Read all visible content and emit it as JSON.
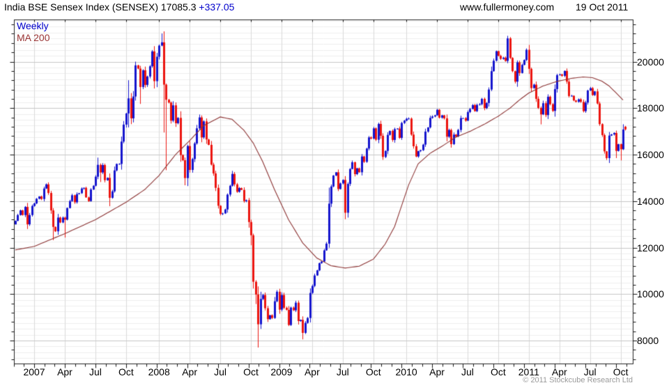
{
  "header": {
    "title": "India BSE Sensex Index (SENSEX)",
    "value": "17085.3",
    "change": "+337.05",
    "site": "www.fullermoney.com",
    "date": "19 Oct 2011"
  },
  "legend": {
    "series": "Weekly",
    "ma": "MA 200"
  },
  "footer": {
    "copyright": "© 2011 Stockcube Research Ltd"
  },
  "colors": {
    "up": "#1414cd",
    "down": "#eb140f",
    "ma": "#8b3232",
    "grid_minor": "#eeeeee",
    "grid_major": "#c6c6c6",
    "grid_vert": "#dadada",
    "border": "#222222",
    "tick": "#111111",
    "change_text": "#0000cc",
    "legend_series": "#0000cc",
    "legend_ma": "#993333",
    "copyright_text": "#9a9a9a"
  },
  "chart_data": {
    "type": "candlestick",
    "interval": "Weekly",
    "overlay": "MA 200",
    "title": "India BSE Sensex Index (SENSEX)",
    "last_value": 17085.3,
    "last_change": 337.05,
    "ylim": [
      7000,
      21800
    ],
    "y_ticks": [
      8000,
      10000,
      12000,
      14000,
      16000,
      18000,
      20000
    ],
    "y_minor_step": 250,
    "x_ticks": [
      {
        "i": 8,
        "label": "2007"
      },
      {
        "i": 21,
        "label": "Apr"
      },
      {
        "i": 34,
        "label": "Jul"
      },
      {
        "i": 47,
        "label": "Oct"
      },
      {
        "i": 61,
        "label": "2008"
      },
      {
        "i": 74,
        "label": "Apr"
      },
      {
        "i": 87,
        "label": "Jul"
      },
      {
        "i": 100,
        "label": "Oct"
      },
      {
        "i": 113,
        "label": "2009"
      },
      {
        "i": 126,
        "label": "Apr"
      },
      {
        "i": 139,
        "label": "Jul"
      },
      {
        "i": 152,
        "label": "Oct"
      },
      {
        "i": 166,
        "label": "2010"
      },
      {
        "i": 179,
        "label": "Apr"
      },
      {
        "i": 192,
        "label": "Jul"
      },
      {
        "i": 205,
        "label": "Oct"
      },
      {
        "i": 218,
        "label": "2011"
      },
      {
        "i": 231,
        "label": "Apr"
      },
      {
        "i": 244,
        "label": "Jul"
      },
      {
        "i": 257,
        "label": "Oct"
      }
    ],
    "closes": [
      13150,
      13400,
      13600,
      13400,
      13750,
      13000,
      13400,
      13790,
      13900,
      14100,
      14200,
      14090,
      14540,
      14720,
      14350,
      13600,
      12890,
      12700,
      13290,
      13080,
      13290,
      13200,
      13700,
      14000,
      14250,
      13950,
      14300,
      14340,
      14540,
      14570,
      14160,
      14000,
      14500,
      14660,
      15050,
      15560,
      15230,
      15550,
      14900,
      15000,
      14140,
      14420,
      15320,
      15600,
      15600,
      16560,
      17290,
      17770,
      18420,
      17560,
      18500,
      19840,
      19700,
      18910,
      19630,
      19000,
      19360,
      19800,
      20440,
      19160,
      20210,
      20690,
      20830,
      19010,
      18360,
      18240,
      17460,
      18120,
      17350,
      17580,
      15980,
      15760,
      14990,
      16370,
      15340,
      15810,
      16480,
      17130,
      17600,
      16740,
      17430,
      16650,
      16420,
      15570,
      15190,
      14570,
      13800,
      13450,
      13470,
      13640,
      14280,
      14660,
      15170,
      14720,
      14400,
      14560,
      14480,
      14000,
      14040,
      13100,
      12530,
      10530,
      9980,
      8700,
      9790,
      9960,
      9390,
      8920,
      9090,
      8970,
      9690,
      10100,
      9330,
      9960,
      9410,
      9320,
      8670,
      9420,
      9300,
      9630,
      8840,
      8890,
      8330,
      8760,
      8970,
      10050,
      10350,
      10800,
      11020,
      11330,
      11400,
      11880,
      12170,
      13890,
      14630,
      15100,
      15240,
      14520,
      14760,
      14910,
      13500,
      14740,
      15380,
      15670,
      15160,
      15410,
      15240,
      15920,
      15690,
      16260,
      16740,
      16690,
      17130,
      16640,
      17320,
      16810,
      15900,
      16160,
      16850,
      17020,
      16630,
      17100,
      17120,
      16720,
      17360,
      17460,
      17540,
      17550,
      16860,
      16360,
      15920,
      16150,
      16190,
      16430,
      16990,
      17170,
      17580,
      17640,
      17690,
      17930,
      17590,
      17690,
      17560,
      16770,
      17060,
      16450,
      16860,
      16780,
      17060,
      17570,
      17570,
      17460,
      17830,
      17960,
      18130,
      17870,
      18140,
      18170,
      18400,
      18000,
      18220,
      18800,
      19590,
      20040,
      20450,
      20250,
      20120,
      20170,
      20030,
      21000,
      20160,
      19590,
      19140,
      19970,
      19510,
      19860,
      20070,
      20510,
      19690,
      18860,
      19010,
      18400,
      18010,
      17730,
      18210,
      17700,
      18490,
      18170,
      17880,
      18820,
      19420,
      19450,
      19390,
      19600,
      19140,
      18520,
      18530,
      18330,
      18270,
      18380,
      18270,
      17870,
      18240,
      18760,
      18860,
      18560,
      18720,
      18200,
      17310,
      16840,
      16140,
      15850,
      16820,
      16870,
      16930,
      16160,
      16450,
      16230,
      17080,
      17085
    ],
    "open_overrides": {
      "0": 13000,
      "259": 17200
    },
    "high_overrides": {
      "13": 14760,
      "35": 15870,
      "48": 19200,
      "51": 20000,
      "58": 20500,
      "62": 21210,
      "101": 12600,
      "103": 10330,
      "104": 10100,
      "133": 14580,
      "209": 21110
    },
    "low_overrides": {
      "5": 12800,
      "16": 12320,
      "21": 12430,
      "36": 14820,
      "40": 13780,
      "48": 17170,
      "49": 17310,
      "53": 18180,
      "63": 16950,
      "64": 15330,
      "72": 14680,
      "100": 12100,
      "101": 10240,
      "102": 9570,
      "103": 7700,
      "104": 8500,
      "122": 8050,
      "140": 13220,
      "185": 16300,
      "223": 17300,
      "251": 15770,
      "255": 15850,
      "257": 15750
    },
    "ma_anchors": [
      [
        0,
        11900
      ],
      [
        8,
        12050
      ],
      [
        21,
        12600
      ],
      [
        34,
        13200
      ],
      [
        47,
        13950
      ],
      [
        55,
        14500
      ],
      [
        61,
        15100
      ],
      [
        68,
        16000
      ],
      [
        74,
        16600
      ],
      [
        80,
        17250
      ],
      [
        87,
        17620
      ],
      [
        92,
        17520
      ],
      [
        97,
        17050
      ],
      [
        101,
        16500
      ],
      [
        105,
        15700
      ],
      [
        110,
        14500
      ],
      [
        116,
        13200
      ],
      [
        122,
        12200
      ],
      [
        128,
        11550
      ],
      [
        134,
        11220
      ],
      [
        140,
        11120
      ],
      [
        146,
        11200
      ],
      [
        152,
        11500
      ],
      [
        157,
        12150
      ],
      [
        161,
        12900
      ],
      [
        164,
        13800
      ],
      [
        167,
        14700
      ],
      [
        171,
        15600
      ],
      [
        176,
        16050
      ],
      [
        181,
        16350
      ],
      [
        187,
        16750
      ],
      [
        193,
        17000
      ],
      [
        199,
        17300
      ],
      [
        205,
        17650
      ],
      [
        210,
        18000
      ],
      [
        214,
        18350
      ],
      [
        218,
        18650
      ],
      [
        224,
        18950
      ],
      [
        230,
        19150
      ],
      [
        236,
        19280
      ],
      [
        241,
        19340
      ],
      [
        245,
        19310
      ],
      [
        249,
        19160
      ],
      [
        252,
        18960
      ],
      [
        255,
        18660
      ],
      [
        258,
        18350
      ]
    ]
  }
}
